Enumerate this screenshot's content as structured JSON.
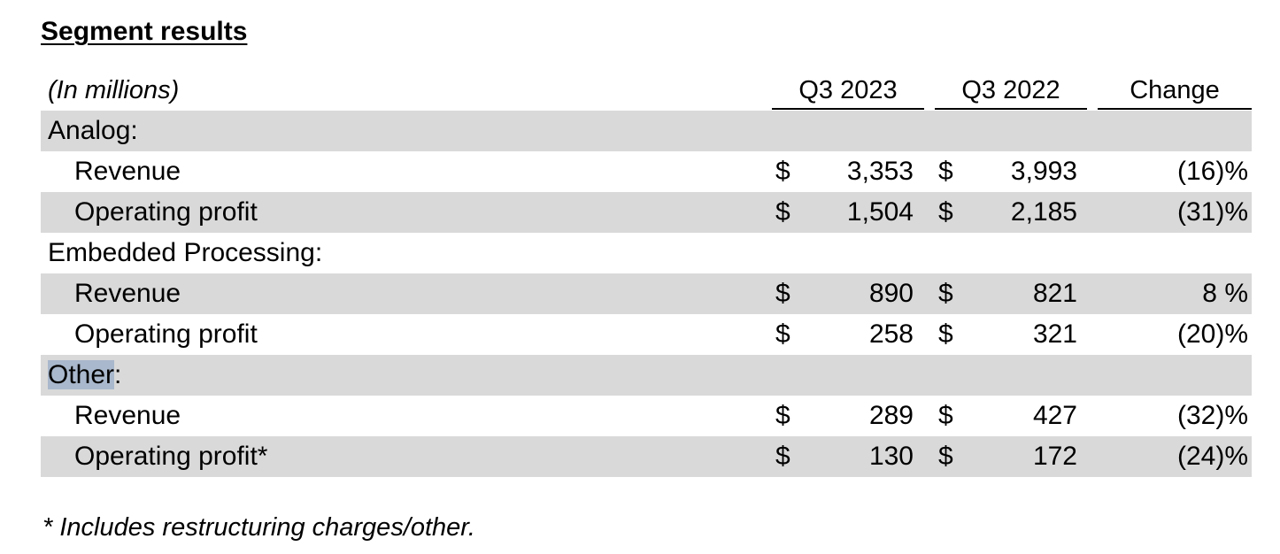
{
  "title": "Segment results",
  "units_label": "(In millions)",
  "columns": {
    "q3_2023": "Q3 2023",
    "q3_2022": "Q3 2022",
    "change": "Change"
  },
  "currency_symbol": "$",
  "sections": [
    {
      "name": "Analog",
      "rows": [
        {
          "label": "Revenue",
          "q3_2023": "3,353",
          "q3_2022": "3,993",
          "change": "(16)%"
        },
        {
          "label": "Operating profit",
          "q3_2023": "1,504",
          "q3_2022": "2,185",
          "change": "(31)%"
        }
      ]
    },
    {
      "name": "Embedded Processing",
      "rows": [
        {
          "label": "Revenue",
          "q3_2023": "890",
          "q3_2022": "821",
          "change": "8 %"
        },
        {
          "label": "Operating profit",
          "q3_2023": "258",
          "q3_2022": "321",
          "change": "(20)%"
        }
      ]
    },
    {
      "name": "Other",
      "rows": [
        {
          "label": "Revenue",
          "q3_2023": "289",
          "q3_2022": "427",
          "change": "(32)%"
        },
        {
          "label": "Operating profit*",
          "q3_2023": "130",
          "q3_2022": "172",
          "change": "(24)%"
        }
      ]
    }
  ],
  "footnote": "* Includes restructuring charges/other.",
  "colors": {
    "row_shade": "#d9d9d9",
    "text_highlight": "#a9b8cc"
  }
}
